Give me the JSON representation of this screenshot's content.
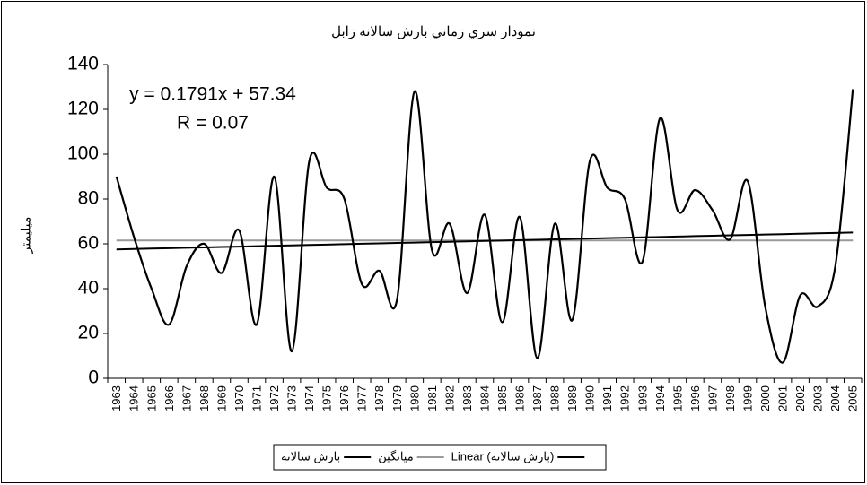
{
  "chart_data": {
    "type": "line",
    "title": "نمودار سري زماني بارش سالانه زابل",
    "y_label": "میلیمتر",
    "annotations": [
      "y = 0.1791x + 57.34",
      "R = 0.07"
    ],
    "categories": [
      "1963",
      "1964",
      "1965",
      "1966",
      "1967",
      "1968",
      "1969",
      "1970",
      "1971",
      "1972",
      "1973",
      "1974",
      "1975",
      "1976",
      "1977",
      "1978",
      "1979",
      "1980",
      "1981",
      "1982",
      "1983",
      "1984",
      "1985",
      "1986",
      "1987",
      "1988",
      "1989",
      "1990",
      "1991",
      "1992",
      "1993",
      "1994",
      "1995",
      "1996",
      "1997",
      "1998",
      "1999",
      "2000",
      "2001",
      "2002",
      "2003",
      "2004",
      "2005"
    ],
    "series": [
      {
        "name": "بارش سالانه",
        "color": "#000000",
        "smooth": true,
        "values": [
          90,
          63,
          40,
          24,
          50,
          60,
          47,
          66,
          24,
          90,
          12,
          97,
          85,
          80,
          42,
          48,
          35,
          128,
          57,
          69,
          38,
          73,
          25,
          72,
          9,
          69,
          26,
          97,
          85,
          80,
          52,
          116,
          75,
          84,
          75,
          62,
          88,
          32,
          7,
          37,
          32,
          50,
          129
        ]
      },
      {
        "name": "میانگین",
        "color": "#999999",
        "smooth": false,
        "values": [
          61.5,
          61.5,
          61.5,
          61.5,
          61.5,
          61.5,
          61.5,
          61.5,
          61.5,
          61.5,
          61.5,
          61.5,
          61.5,
          61.5,
          61.5,
          61.5,
          61.5,
          61.5,
          61.5,
          61.5,
          61.5,
          61.5,
          61.5,
          61.5,
          61.5,
          61.5,
          61.5,
          61.5,
          61.5,
          61.5,
          61.5,
          61.5,
          61.5,
          61.5,
          61.5,
          61.5,
          61.5,
          61.5,
          61.5,
          61.5,
          61.5,
          61.5,
          61.5
        ]
      },
      {
        "name": "Linear (بارش سالانه)",
        "color": "#000000",
        "smooth": false,
        "values": [
          57.52,
          57.7,
          57.88,
          58.06,
          58.24,
          58.41,
          58.59,
          58.77,
          58.95,
          59.13,
          59.31,
          59.49,
          59.67,
          59.85,
          60.03,
          60.21,
          60.38,
          60.56,
          60.74,
          60.92,
          61.1,
          61.28,
          61.46,
          61.64,
          61.82,
          62.0,
          62.18,
          62.35,
          62.53,
          62.71,
          62.89,
          63.07,
          63.25,
          63.43,
          63.61,
          63.79,
          63.97,
          64.15,
          64.32,
          64.5,
          64.68,
          64.86,
          65.04
        ]
      }
    ],
    "ylim": [
      0,
      140
    ],
    "yticks": [
      0,
      20,
      40,
      60,
      80,
      100,
      120,
      140
    ],
    "grid": false,
    "legend": "bottom"
  }
}
